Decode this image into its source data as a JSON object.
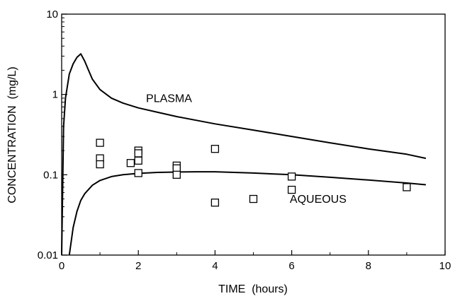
{
  "chart_data": {
    "type": "scatter",
    "xlabel": "TIME  (hours)",
    "ylabel": "CONCENTRATION  (mg/L)",
    "xlim": [
      0,
      10
    ],
    "ylim": [
      0.01,
      10
    ],
    "yscale": "log",
    "grid": false,
    "x_ticks": [
      0,
      2,
      4,
      6,
      8,
      10
    ],
    "x_tick_labels": [
      "0",
      "2",
      "4",
      "6",
      "8",
      "10"
    ],
    "y_ticks": [
      0.01,
      0.1,
      1,
      10
    ],
    "y_tick_labels": [
      "0.01",
      "0.1",
      "1",
      "10"
    ],
    "annotations": [
      {
        "text": "PLASMA",
        "x": 2.2,
        "y": 0.8
      },
      {
        "text": "AQUEOUS",
        "x": 5.95,
        "y": 0.045
      }
    ],
    "series": [
      {
        "type": "line",
        "points": [
          [
            0,
            0.01
          ],
          [
            0.05,
            0.4
          ],
          [
            0.1,
            0.9
          ],
          [
            0.2,
            1.8
          ],
          [
            0.3,
            2.4
          ],
          [
            0.4,
            2.9
          ],
          [
            0.5,
            3.2
          ],
          [
            0.6,
            2.6
          ],
          [
            0.7,
            2.0
          ],
          [
            0.8,
            1.55
          ],
          [
            1.0,
            1.15
          ],
          [
            1.3,
            0.9
          ],
          [
            1.6,
            0.78
          ],
          [
            2.0,
            0.68
          ],
          [
            2.5,
            0.6
          ],
          [
            3.0,
            0.53
          ],
          [
            4.0,
            0.43
          ],
          [
            5.0,
            0.36
          ],
          [
            6.0,
            0.3
          ],
          [
            7.0,
            0.25
          ],
          [
            8.0,
            0.21
          ],
          [
            9.0,
            0.18
          ],
          [
            9.5,
            0.16
          ]
        ]
      },
      {
        "type": "line",
        "points": [
          [
            0.2,
            0.01
          ],
          [
            0.3,
            0.022
          ],
          [
            0.4,
            0.035
          ],
          [
            0.5,
            0.048
          ],
          [
            0.6,
            0.058
          ],
          [
            0.8,
            0.074
          ],
          [
            1.0,
            0.085
          ],
          [
            1.3,
            0.095
          ],
          [
            1.6,
            0.1
          ],
          [
            2.0,
            0.104
          ],
          [
            2.5,
            0.107
          ],
          [
            3.0,
            0.108
          ],
          [
            3.5,
            0.109
          ],
          [
            4.0,
            0.109
          ],
          [
            5.0,
            0.105
          ],
          [
            6.0,
            0.1
          ],
          [
            7.0,
            0.093
          ],
          [
            8.0,
            0.086
          ],
          [
            9.0,
            0.079
          ],
          [
            9.5,
            0.075
          ]
        ]
      },
      {
        "type": "scatter",
        "marker": "square",
        "points": [
          [
            1,
            0.25
          ],
          [
            1,
            0.16
          ],
          [
            1,
            0.135
          ],
          [
            1.8,
            0.14
          ],
          [
            2,
            0.2
          ],
          [
            2,
            0.185
          ],
          [
            2,
            0.15
          ],
          [
            2,
            0.105
          ],
          [
            3,
            0.13
          ],
          [
            3,
            0.12
          ],
          [
            3,
            0.1
          ],
          [
            4,
            0.21
          ],
          [
            4,
            0.045
          ],
          [
            5,
            0.05
          ],
          [
            6,
            0.095
          ],
          [
            6,
            0.065
          ],
          [
            9,
            0.07
          ]
        ]
      }
    ]
  }
}
